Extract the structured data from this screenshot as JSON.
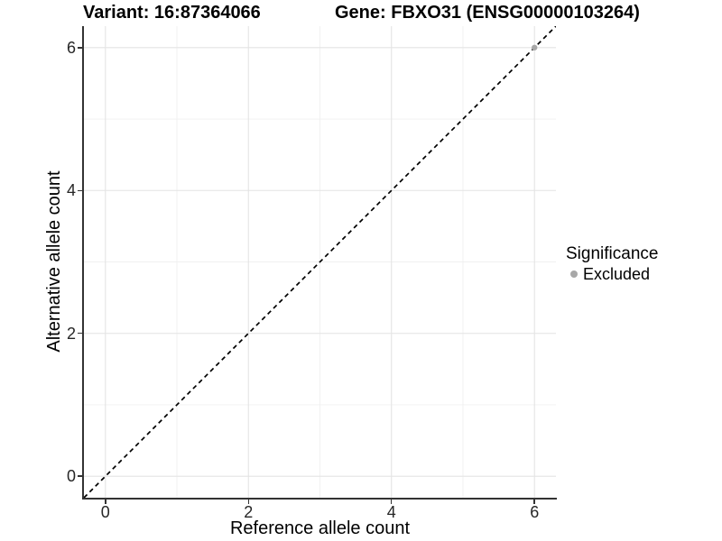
{
  "chart_data": {
    "type": "scatter",
    "titles": {
      "left": "Variant: 16:87364066",
      "right": "Gene: FBXO31 (ENSG00000103264)"
    },
    "xlabel": "Reference allele count",
    "ylabel": "Alternative allele count",
    "xlim": [
      -0.3,
      6.3
    ],
    "ylim": [
      -0.3,
      6.3
    ],
    "xticks": [
      "0",
      "2",
      "4",
      "6"
    ],
    "yticks": [
      "0",
      "2",
      "4",
      "6"
    ],
    "xtick_values": [
      0,
      2,
      4,
      6
    ],
    "ytick_values": [
      0,
      2,
      4,
      6
    ],
    "xminor_values": [
      1,
      3,
      5
    ],
    "yminor_values": [
      1,
      3,
      5
    ],
    "grid": "on",
    "legend": {
      "title": "Significance",
      "position": "right",
      "items": [
        {
          "label": "Excluded",
          "color": "#a8a8a8"
        }
      ]
    },
    "reference_line": {
      "slope": 1,
      "intercept": 0,
      "style": "dashed",
      "color": "#000000"
    },
    "series": [
      {
        "name": "Excluded",
        "color": "#a8a8a8",
        "points": [
          {
            "x": 6,
            "y": 6
          }
        ]
      }
    ],
    "colors": {
      "grid_major": "#e4e4e4",
      "grid_minor": "#f0f0f0",
      "axis": "#333333",
      "tick_text": "#262626"
    }
  }
}
